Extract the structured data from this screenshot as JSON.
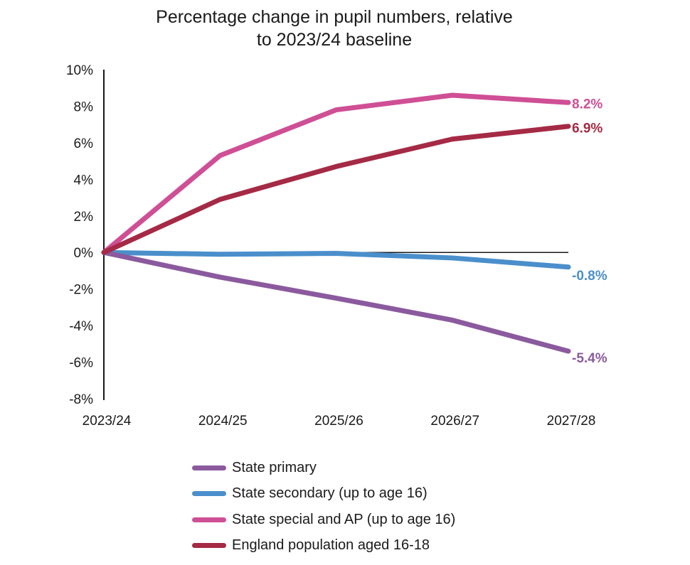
{
  "chart_data": {
    "type": "line",
    "title": "Percentage change in pupil numbers, relative to 2023/24 baseline",
    "title_lines": [
      "Percentage change in pupil numbers, relative",
      "to 2023/24 baseline"
    ],
    "xlabel": "",
    "ylabel": "",
    "categories": [
      "2023/24",
      "2024/25",
      "2025/26",
      "2026/27",
      "2027/28"
    ],
    "ylim": [
      -8,
      10
    ],
    "yticks": [
      10,
      8,
      6,
      4,
      2,
      0,
      -2,
      -4,
      -6,
      -8
    ],
    "ytick_labels": [
      "10%",
      "8%",
      "6%",
      "4%",
      "2%",
      "0%",
      "-2%",
      "-4%",
      "-6%",
      "-8%"
    ],
    "grid": false,
    "legend_position": "bottom",
    "series": [
      {
        "name": "State primary",
        "color": "#8b5a9e",
        "values": [
          0,
          -1.35,
          -2.5,
          -3.7,
          -5.4
        ],
        "end_label": "-5.4%"
      },
      {
        "name": "State secondary (up to age 16)",
        "color": "#4a8fcb",
        "values": [
          0,
          -0.1,
          -0.05,
          -0.3,
          -0.8
        ],
        "end_label": "-0.8%"
      },
      {
        "name": "State special and AP (up to age 16)",
        "color": "#cf4f95",
        "values": [
          0,
          5.3,
          7.8,
          8.6,
          8.2
        ],
        "end_label": "8.2%"
      },
      {
        "name": "England population aged 16-18",
        "color": "#a52a45",
        "values": [
          0,
          2.9,
          4.7,
          6.2,
          6.9
        ],
        "end_label": "6.9%"
      }
    ]
  }
}
